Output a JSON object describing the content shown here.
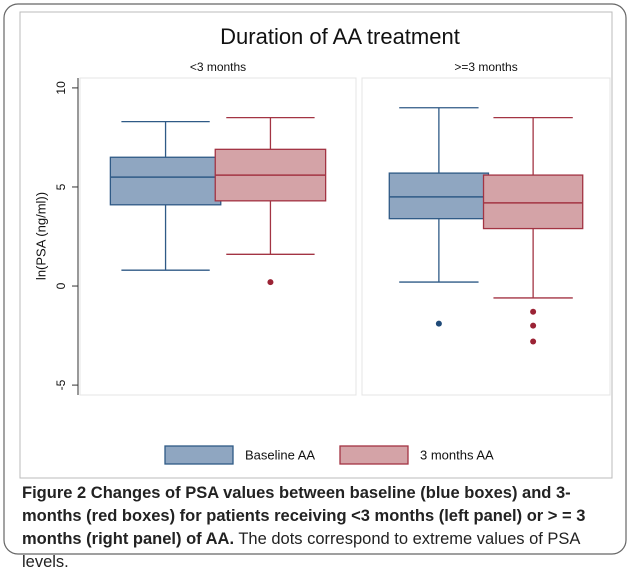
{
  "chart_data": {
    "type": "box",
    "title": "Duration of AA treatment",
    "ylabel": "ln(PSA (ng/ml))",
    "categories": [
      "<3 months",
      ">=3 months"
    ],
    "ylim": [
      -5.5,
      10.5
    ],
    "yticks": [
      -5,
      0,
      5,
      10
    ],
    "series": [
      {
        "name": "Baseline AA",
        "color": "#8fa6c1",
        "edge": "#2f5a86",
        "flier_color": "#1f4a78",
        "values": [
          {
            "whislo": 0.8,
            "q1": 4.1,
            "med": 5.5,
            "q3": 6.5,
            "whishi": 8.3,
            "fliers": []
          },
          {
            "whislo": 0.2,
            "q1": 3.4,
            "med": 4.5,
            "q3": 5.7,
            "whishi": 9.0,
            "fliers": [
              -1.9
            ]
          }
        ]
      },
      {
        "name": "3 months AA",
        "color": "#d4a3a7",
        "edge": "#a33443",
        "flier_color": "#9b2335",
        "values": [
          {
            "whislo": 1.6,
            "q1": 4.3,
            "med": 5.6,
            "q3": 6.9,
            "whishi": 8.5,
            "fliers": [
              0.2
            ]
          },
          {
            "whislo": -0.6,
            "q1": 2.9,
            "med": 4.2,
            "q3": 5.6,
            "whishi": 8.5,
            "fliers": [
              -1.3,
              -2.0,
              -2.8
            ]
          }
        ]
      }
    ]
  },
  "caption": {
    "label": "Figure 2",
    "title": "Changes of PSA values between baseline (blue boxes) and 3-months (red boxes) for patients receiving <3 months (left panel) or > = 3 months (right panel) of AA.",
    "text": "The dots correspond to extreme values of PSA levels."
  }
}
